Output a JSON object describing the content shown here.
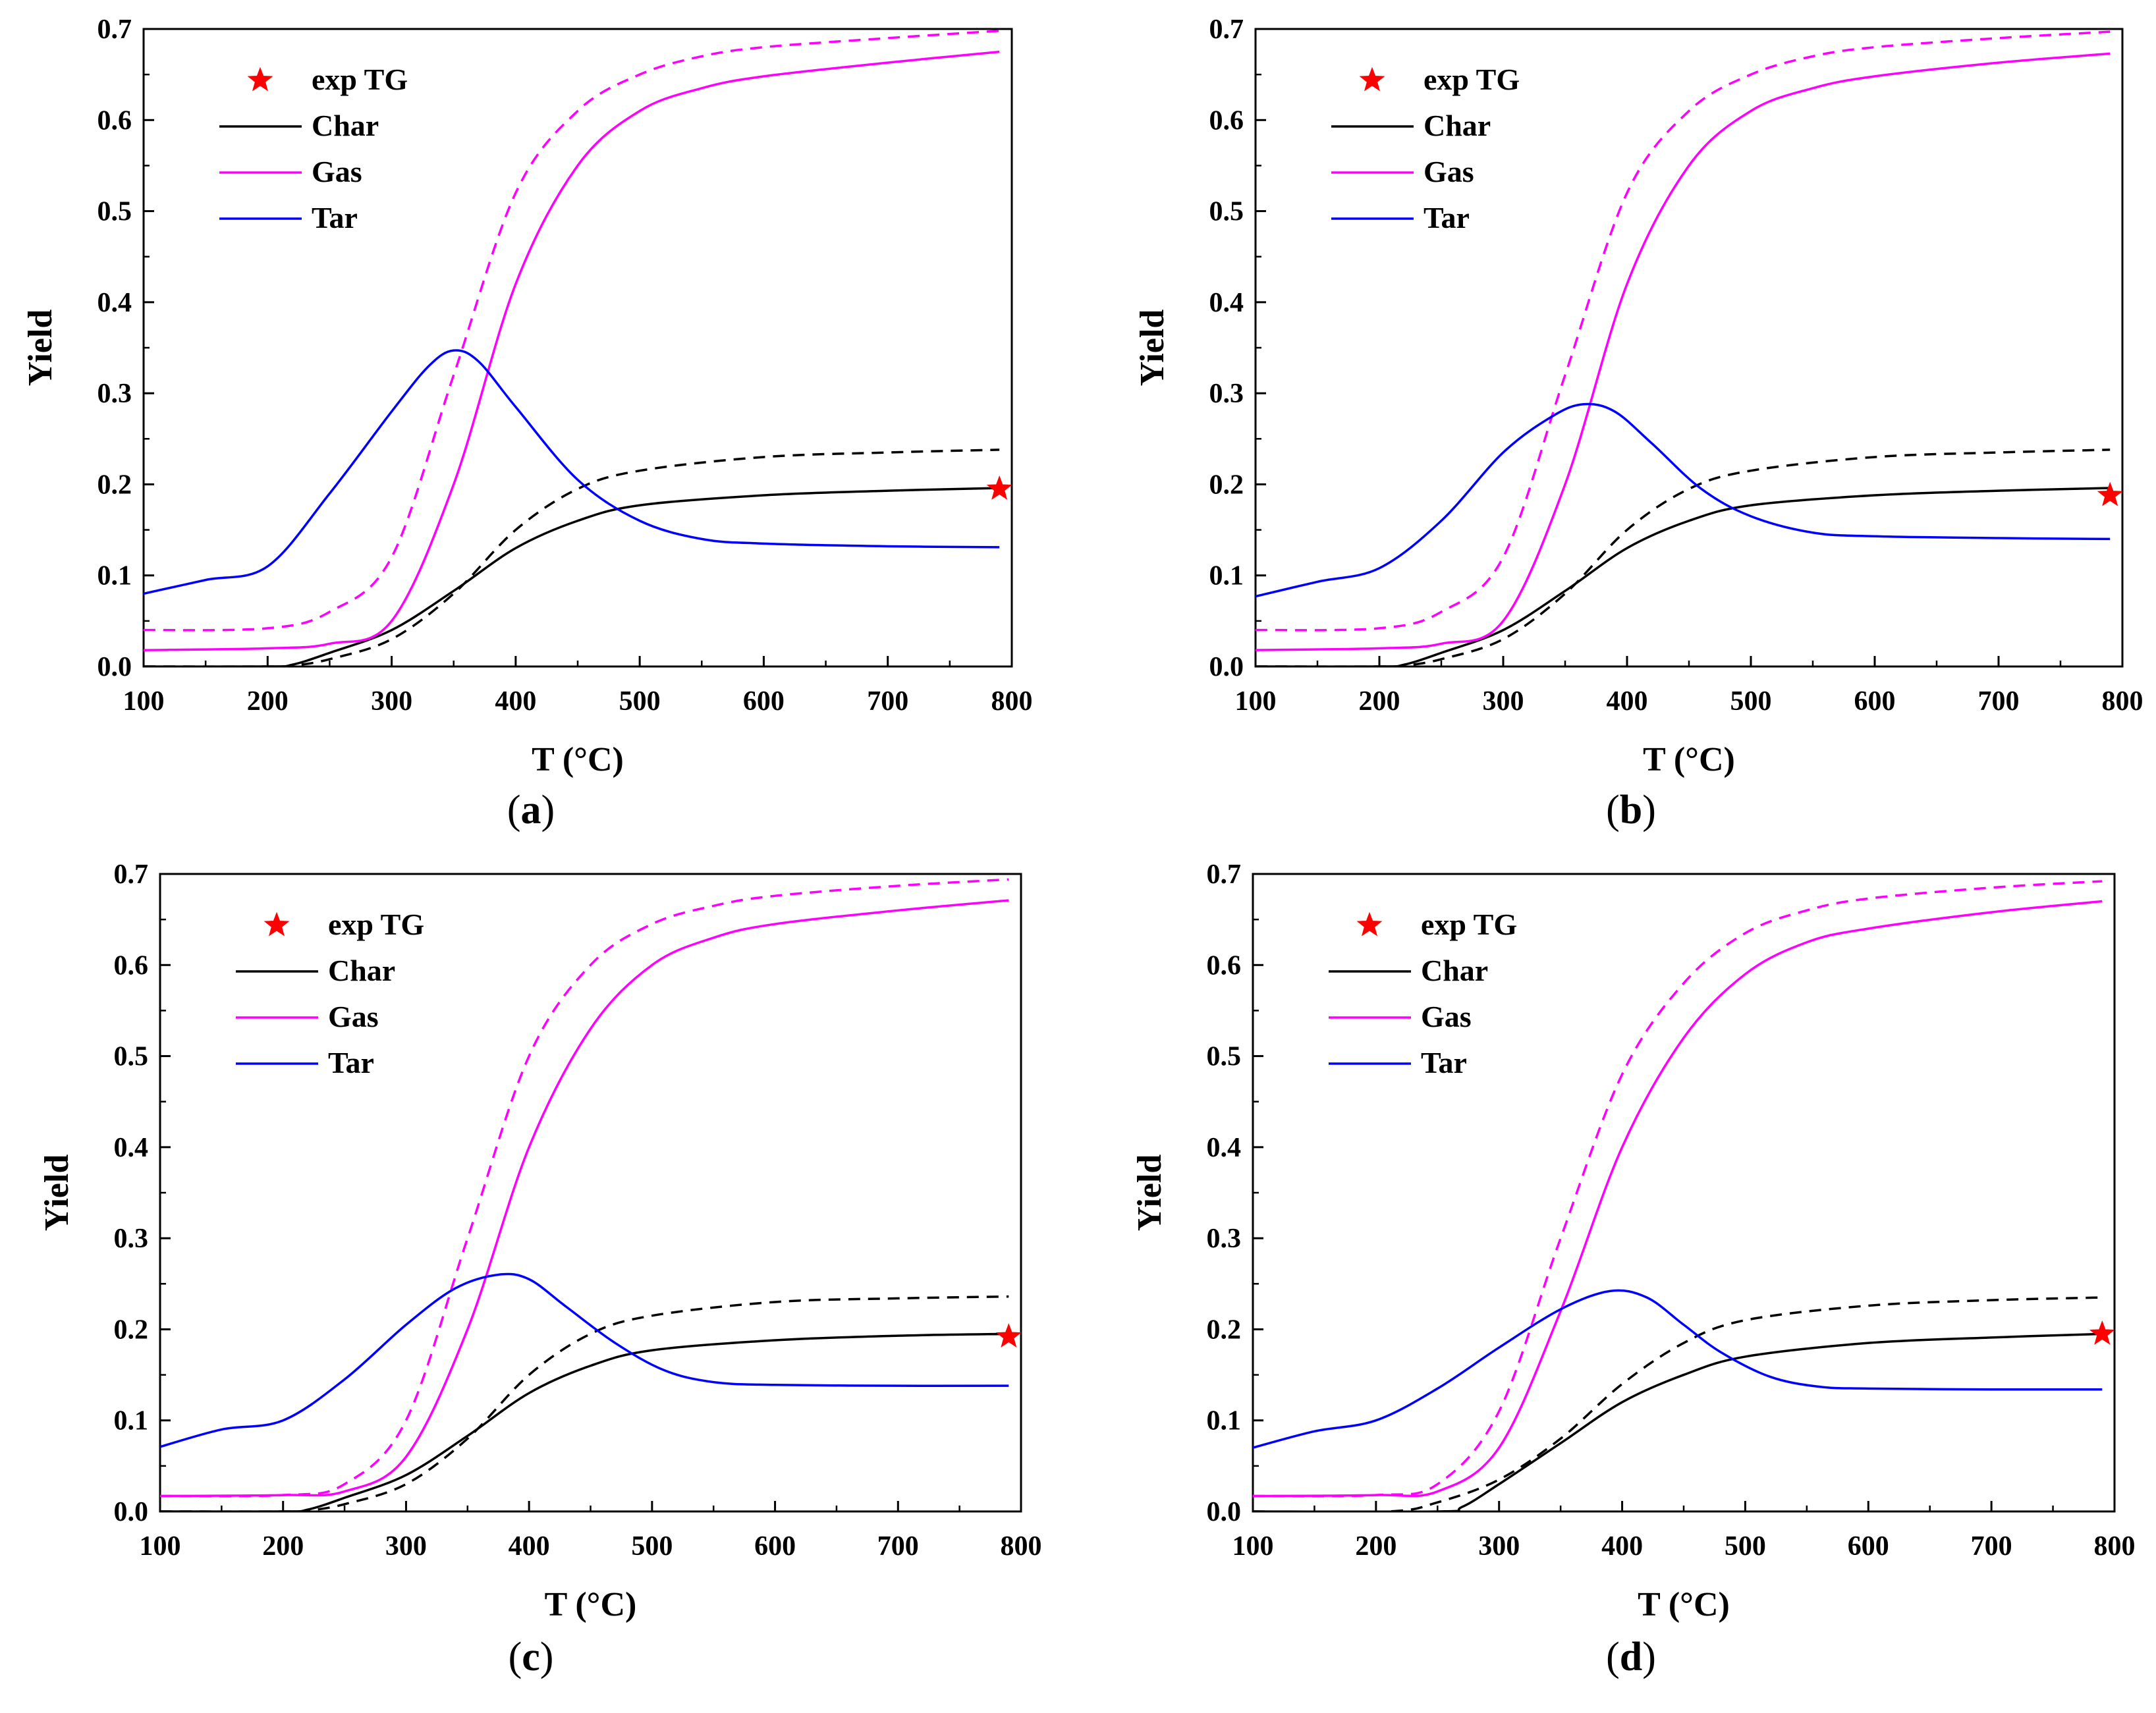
{
  "colors": {
    "char": "#000000",
    "gas": "#ff00ff",
    "tar": "#0000ff",
    "exp": "#ff0000",
    "axis": "#000000"
  },
  "legend": [
    "exp TG",
    "Char",
    "Gas",
    "Tar"
  ],
  "line_styles": {
    "solid": "solid",
    "dashed": "dashed"
  },
  "chart_data": [
    {
      "panel": "a",
      "caption_letter": "a",
      "type": "line",
      "xlabel": "T (°C)",
      "ylabel": "Yield",
      "xlim": [
        100,
        800
      ],
      "ylim": [
        0,
        0.7
      ],
      "xticks": [
        "100",
        "200",
        "300",
        "400",
        "500",
        "600",
        "700",
        "800"
      ],
      "yticks": [
        "0.0",
        "0.1",
        "0.2",
        "0.3",
        "0.4",
        "0.5",
        "0.6",
        "0.7"
      ],
      "legend_entries": [
        "exp TG",
        "Char",
        "Gas",
        "Tar"
      ],
      "series": [
        {
          "name": "Char",
          "style": "solid",
          "color": "#000000",
          "x": [
            100,
            200,
            220,
            250,
            300,
            350,
            400,
            450,
            500,
            600,
            700,
            790
          ],
          "y": [
            0,
            0,
            0.002,
            0.015,
            0.04,
            0.083,
            0.13,
            0.16,
            0.177,
            0.188,
            0.193,
            0.196
          ]
        },
        {
          "name": "Char (dashed)",
          "style": "dashed",
          "color": "#000000",
          "x": [
            100,
            200,
            220,
            250,
            300,
            350,
            400,
            450,
            500,
            600,
            700,
            790
          ],
          "y": [
            0,
            0,
            0.001,
            0.008,
            0.03,
            0.08,
            0.15,
            0.195,
            0.215,
            0.23,
            0.235,
            0.238
          ]
        },
        {
          "name": "Gas",
          "style": "solid",
          "color": "#ff00ff",
          "x": [
            100,
            200,
            250,
            300,
            350,
            400,
            450,
            500,
            550,
            600,
            700,
            790
          ],
          "y": [
            0.018,
            0.02,
            0.025,
            0.05,
            0.2,
            0.42,
            0.55,
            0.61,
            0.635,
            0.648,
            0.663,
            0.675
          ]
        },
        {
          "name": "Gas (dashed)",
          "style": "dashed",
          "color": "#ff00ff",
          "x": [
            100,
            200,
            250,
            300,
            350,
            400,
            450,
            500,
            550,
            600,
            700,
            790
          ],
          "y": [
            0.04,
            0.042,
            0.06,
            0.12,
            0.32,
            0.52,
            0.61,
            0.65,
            0.67,
            0.68,
            0.69,
            0.698
          ]
        },
        {
          "name": "Tar",
          "style": "solid",
          "color": "#0000ff",
          "x": [
            100,
            150,
            200,
            250,
            300,
            330,
            350,
            370,
            400,
            450,
            500,
            550,
            600,
            700,
            790
          ],
          "y": [
            0.08,
            0.095,
            0.11,
            0.19,
            0.28,
            0.33,
            0.347,
            0.335,
            0.285,
            0.205,
            0.16,
            0.14,
            0.135,
            0.132,
            0.131
          ]
        }
      ],
      "exp_points": [
        {
          "x": 790,
          "y": 0.195
        }
      ]
    },
    {
      "panel": "b",
      "caption_letter": "b",
      "type": "line",
      "xlabel": "T (°C)",
      "ylabel": "Yield",
      "xlim": [
        100,
        800
      ],
      "ylim": [
        0,
        0.7
      ],
      "xticks": [
        "100",
        "200",
        "300",
        "400",
        "500",
        "600",
        "700",
        "800"
      ],
      "yticks": [
        "0.0",
        "0.1",
        "0.2",
        "0.3",
        "0.4",
        "0.5",
        "0.6",
        "0.7"
      ],
      "legend_entries": [
        "exp TG",
        "Char",
        "Gas",
        "Tar"
      ],
      "series": [
        {
          "name": "Char",
          "style": "solid",
          "color": "#000000",
          "x": [
            100,
            200,
            220,
            250,
            300,
            350,
            400,
            450,
            500,
            600,
            700,
            790
          ],
          "y": [
            0,
            0,
            0.002,
            0.015,
            0.04,
            0.083,
            0.13,
            0.16,
            0.177,
            0.188,
            0.193,
            0.196
          ]
        },
        {
          "name": "Char (dashed)",
          "style": "dashed",
          "color": "#000000",
          "x": [
            100,
            200,
            220,
            250,
            300,
            350,
            400,
            450,
            500,
            600,
            700,
            790
          ],
          "y": [
            0,
            0,
            0.001,
            0.008,
            0.03,
            0.08,
            0.15,
            0.195,
            0.215,
            0.23,
            0.235,
            0.238
          ]
        },
        {
          "name": "Gas",
          "style": "solid",
          "color": "#ff00ff",
          "x": [
            100,
            200,
            250,
            300,
            350,
            400,
            450,
            500,
            550,
            600,
            700,
            790
          ],
          "y": [
            0.018,
            0.02,
            0.025,
            0.05,
            0.2,
            0.42,
            0.55,
            0.61,
            0.635,
            0.648,
            0.663,
            0.673
          ]
        },
        {
          "name": "Gas (dashed)",
          "style": "dashed",
          "color": "#ff00ff",
          "x": [
            100,
            200,
            250,
            300,
            350,
            400,
            450,
            500,
            550,
            600,
            700,
            790
          ],
          "y": [
            0.04,
            0.042,
            0.06,
            0.12,
            0.32,
            0.52,
            0.61,
            0.65,
            0.67,
            0.68,
            0.69,
            0.697
          ]
        },
        {
          "name": "Tar",
          "style": "solid",
          "color": "#0000ff",
          "x": [
            100,
            150,
            200,
            250,
            300,
            340,
            365,
            390,
            420,
            460,
            500,
            550,
            600,
            700,
            790
          ],
          "y": [
            0.077,
            0.093,
            0.108,
            0.16,
            0.235,
            0.275,
            0.288,
            0.28,
            0.245,
            0.195,
            0.165,
            0.147,
            0.143,
            0.141,
            0.14
          ]
        }
      ],
      "exp_points": [
        {
          "x": 790,
          "y": 0.188
        }
      ]
    },
    {
      "panel": "c",
      "caption_letter": "c",
      "type": "line",
      "xlabel": "T (°C)",
      "ylabel": "Yield",
      "xlim": [
        100,
        800
      ],
      "ylim": [
        0,
        0.7
      ],
      "xticks": [
        "100",
        "200",
        "300",
        "400",
        "500",
        "600",
        "700",
        "800"
      ],
      "yticks": [
        "0.0",
        "0.1",
        "0.2",
        "0.3",
        "0.4",
        "0.5",
        "0.6",
        "0.7"
      ],
      "legend_entries": [
        "exp TG",
        "Char",
        "Gas",
        "Tar"
      ],
      "series": [
        {
          "name": "Char",
          "style": "solid",
          "color": "#000000",
          "x": [
            100,
            200,
            220,
            250,
            300,
            350,
            400,
            450,
            500,
            600,
            700,
            790
          ],
          "y": [
            0,
            0,
            0.002,
            0.015,
            0.04,
            0.083,
            0.13,
            0.16,
            0.177,
            0.188,
            0.193,
            0.195
          ]
        },
        {
          "name": "Char (dashed)",
          "style": "dashed",
          "color": "#000000",
          "x": [
            100,
            200,
            220,
            250,
            300,
            350,
            400,
            450,
            500,
            600,
            700,
            790
          ],
          "y": [
            0,
            0,
            0.001,
            0.008,
            0.03,
            0.08,
            0.15,
            0.195,
            0.215,
            0.23,
            0.234,
            0.236
          ]
        },
        {
          "name": "Gas",
          "style": "solid",
          "color": "#ff00ff",
          "x": [
            100,
            200,
            250,
            300,
            350,
            400,
            450,
            500,
            550,
            600,
            700,
            790
          ],
          "y": [
            0.017,
            0.018,
            0.022,
            0.06,
            0.2,
            0.4,
            0.53,
            0.6,
            0.63,
            0.645,
            0.66,
            0.671
          ]
        },
        {
          "name": "Gas (dashed)",
          "style": "dashed",
          "color": "#ff00ff",
          "x": [
            100,
            200,
            250,
            300,
            350,
            400,
            450,
            500,
            550,
            600,
            700,
            790
          ],
          "y": [
            0.017,
            0.018,
            0.03,
            0.1,
            0.3,
            0.5,
            0.6,
            0.645,
            0.665,
            0.676,
            0.687,
            0.694
          ]
        },
        {
          "name": "Tar",
          "style": "solid",
          "color": "#0000ff",
          "x": [
            100,
            150,
            200,
            250,
            300,
            340,
            375,
            400,
            430,
            470,
            510,
            550,
            600,
            700,
            790
          ],
          "y": [
            0.071,
            0.09,
            0.1,
            0.145,
            0.205,
            0.245,
            0.26,
            0.255,
            0.225,
            0.185,
            0.155,
            0.142,
            0.139,
            0.138,
            0.138
          ]
        }
      ],
      "exp_points": [
        {
          "x": 790,
          "y": 0.192
        }
      ]
    },
    {
      "panel": "d",
      "caption_letter": "d",
      "type": "line",
      "xlabel": "T (°C)",
      "ylabel": "Yield",
      "xlim": [
        100,
        800
      ],
      "ylim": [
        0,
        0.7
      ],
      "xticks": [
        "100",
        "200",
        "300",
        "400",
        "500",
        "600",
        "700",
        "800"
      ],
      "yticks": [
        "0.0",
        "0.1",
        "0.2",
        "0.3",
        "0.4",
        "0.5",
        "0.6",
        "0.7"
      ],
      "legend_entries": [
        "exp TG",
        "Char",
        "Gas",
        "Tar"
      ],
      "series": [
        {
          "name": "Char",
          "style": "solid",
          "color": "#000000",
          "x": [
            100,
            250,
            270,
            300,
            350,
            400,
            450,
            500,
            600,
            700,
            790
          ],
          "y": [
            0,
            0,
            0.005,
            0.03,
            0.075,
            0.12,
            0.15,
            0.17,
            0.185,
            0.191,
            0.195
          ]
        },
        {
          "name": "Char (dashed)",
          "style": "dashed",
          "color": "#000000",
          "x": [
            100,
            210,
            250,
            300,
            350,
            400,
            450,
            500,
            600,
            700,
            790
          ],
          "y": [
            0,
            0,
            0.01,
            0.035,
            0.08,
            0.14,
            0.185,
            0.21,
            0.226,
            0.232,
            0.235
          ]
        },
        {
          "name": "Gas",
          "style": "solid",
          "color": "#ff00ff",
          "x": [
            100,
            200,
            250,
            300,
            350,
            400,
            450,
            500,
            550,
            600,
            700,
            790
          ],
          "y": [
            0.017,
            0.018,
            0.022,
            0.07,
            0.22,
            0.4,
            0.52,
            0.59,
            0.625,
            0.64,
            0.658,
            0.67
          ]
        },
        {
          "name": "Gas (dashed)",
          "style": "dashed",
          "color": "#ff00ff",
          "x": [
            100,
            200,
            250,
            300,
            350,
            400,
            450,
            500,
            550,
            600,
            700,
            790
          ],
          "y": [
            0.017,
            0.018,
            0.03,
            0.11,
            0.3,
            0.48,
            0.58,
            0.635,
            0.66,
            0.673,
            0.685,
            0.692
          ]
        },
        {
          "name": "Tar",
          "style": "solid",
          "color": "#0000ff",
          "x": [
            100,
            150,
            200,
            250,
            300,
            350,
            390,
            420,
            450,
            480,
            520,
            560,
            600,
            700,
            790
          ],
          "y": [
            0.07,
            0.088,
            0.1,
            0.135,
            0.18,
            0.222,
            0.242,
            0.235,
            0.205,
            0.175,
            0.148,
            0.137,
            0.135,
            0.134,
            0.134
          ]
        }
      ],
      "exp_points": [
        {
          "x": 790,
          "y": 0.195
        }
      ]
    }
  ]
}
